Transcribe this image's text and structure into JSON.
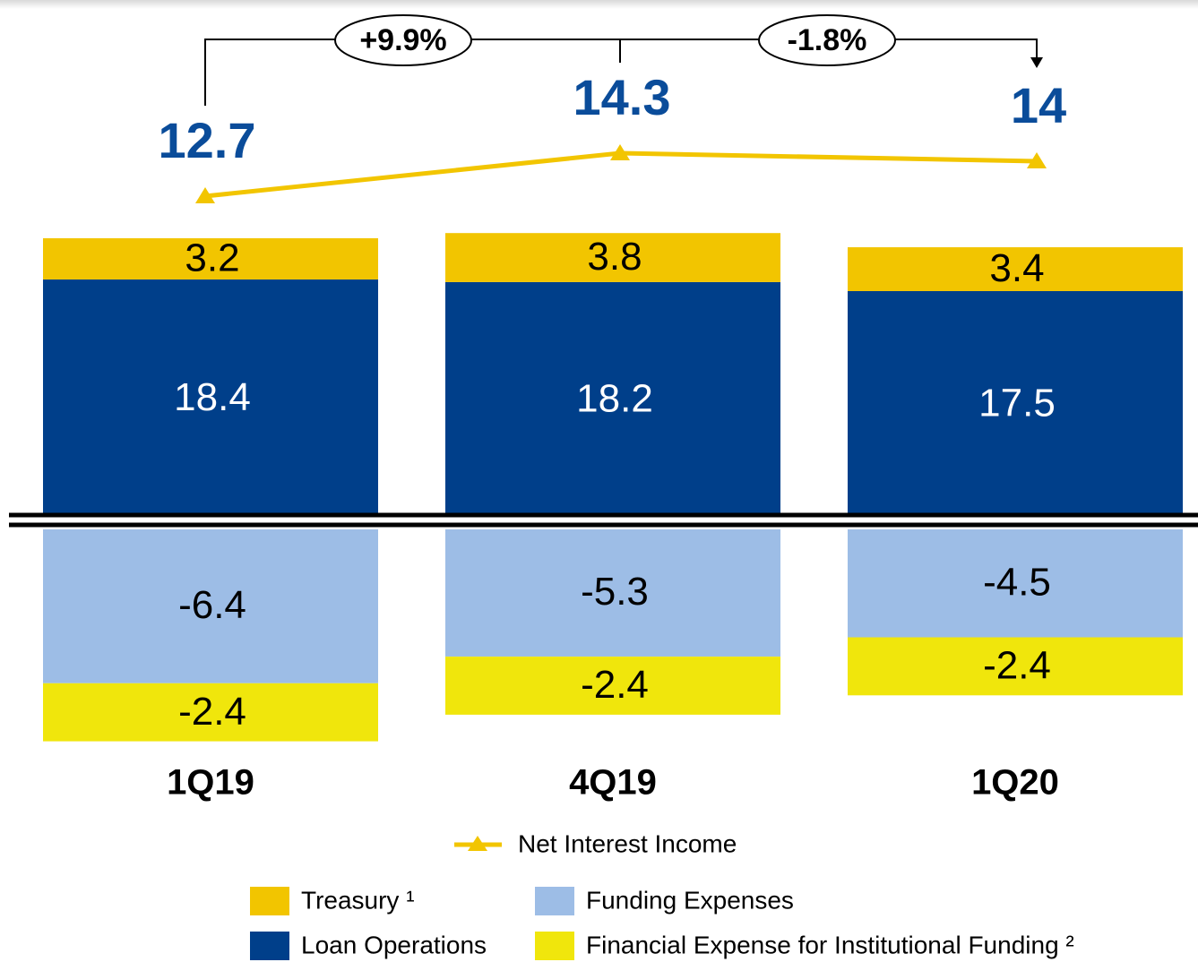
{
  "chart_data": {
    "type": "bar",
    "stacked": true,
    "categories": [
      "1Q19",
      "4Q19",
      "1Q20"
    ],
    "series": [
      {
        "name": "Loan Operations",
        "color": "#003f8a",
        "values": [
          18.4,
          18.2,
          17.5
        ]
      },
      {
        "name": "Treasury ¹",
        "color": "#f2c500",
        "values": [
          3.2,
          3.8,
          3.4
        ]
      },
      {
        "name": "Funding Expenses",
        "color": "#9dbde6",
        "values": [
          -6.4,
          -5.3,
          -4.5
        ]
      },
      {
        "name": "Financial Expense for Institutional Funding ²",
        "color": "#f0e60c",
        "values": [
          -2.4,
          -2.4,
          -2.4
        ]
      }
    ],
    "line": {
      "name": "Net Interest Income",
      "color": "#f2c500",
      "values": [
        12.7,
        14.3,
        14.0
      ]
    },
    "annotations": [
      "+9.9%",
      "-1.8%"
    ]
  }
}
